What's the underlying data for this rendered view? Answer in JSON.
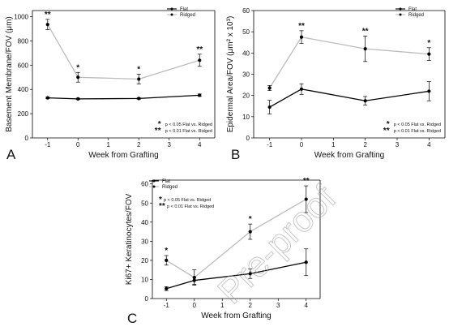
{
  "chart_data": [
    {
      "type": "line",
      "panel_label": "A",
      "xlabel": "Week from Grafting",
      "ylabel": "Basement Membrane/FOV (μm)",
      "xlim": [
        -1.5,
        4.5
      ],
      "ylim": [
        0,
        1050
      ],
      "x_ticks": [
        "-1",
        "0",
        "1",
        "2",
        "3",
        "4"
      ],
      "y_ticks": [
        "0",
        "200",
        "400",
        "600",
        "800",
        "1000"
      ],
      "grid": false,
      "legend_position": "top-right",
      "x": [
        -1,
        0,
        2,
        4
      ],
      "series": [
        {
          "name": "Flat",
          "values": [
            330,
            322,
            325,
            352
          ],
          "errors": [
            6,
            6,
            6,
            10
          ],
          "color": "#000000"
        },
        {
          "name": "Ridged",
          "values": [
            935,
            500,
            485,
            640
          ],
          "errors": [
            42,
            40,
            40,
            50
          ],
          "color": "#bbbbbb"
        }
      ],
      "significance": [
        "**",
        "*",
        "*",
        "**"
      ],
      "notes": [
        "p < 0.05 Flat vs. Ridged",
        "p < 0.01 Flat vs. Ridged"
      ]
    },
    {
      "type": "line",
      "panel_label": "B",
      "xlabel": "Week from Grafting",
      "ylabel": "Epidermal Area/FOV (μm² x 10³)",
      "xlim": [
        -1.5,
        4.5
      ],
      "ylim": [
        0,
        60
      ],
      "x_ticks": [
        "-1",
        "0",
        "1",
        "2",
        "3",
        "4"
      ],
      "y_ticks": [
        "0",
        "10",
        "20",
        "30",
        "40",
        "50",
        "60"
      ],
      "grid": false,
      "legend_position": "top-right",
      "x": [
        -1,
        0,
        2,
        4
      ],
      "series": [
        {
          "name": "Flat",
          "values": [
            14.5,
            23,
            17.5,
            22
          ],
          "errors": [
            3.2,
            2.5,
            2,
            4.5
          ],
          "color": "#000000"
        },
        {
          "name": "Ridged",
          "values": [
            23.5,
            47.5,
            42,
            39.5
          ],
          "errors": [
            1.2,
            3,
            6,
            3
          ],
          "color": "#bbbbbb"
        }
      ],
      "significance": [
        "",
        "**",
        "**",
        "*"
      ],
      "notes": [
        "p < 0.05 Flat vs. Ridged",
        "p < 0.01 Flat vs. Ridged"
      ]
    },
    {
      "type": "line",
      "panel_label": "C",
      "xlabel": "Week from Grafting",
      "ylabel": "Ki67+ Keratinocytes/FOV",
      "xlim": [
        -1.5,
        4.5
      ],
      "ylim": [
        0,
        62
      ],
      "x_ticks": [
        "-1",
        "0",
        "1",
        "2",
        "3",
        "4"
      ],
      "y_ticks": [
        "0",
        "10",
        "20",
        "30",
        "40",
        "50",
        "60"
      ],
      "grid": false,
      "legend_position": "top-left",
      "x": [
        -1,
        0,
        2,
        4
      ],
      "series": [
        {
          "name": "Flat",
          "values": [
            5.2,
            9.5,
            13,
            19
          ],
          "errors": [
            1,
            2,
            2.5,
            7
          ],
          "color": "#000000"
        },
        {
          "name": "Ridged",
          "values": [
            20,
            11,
            35,
            52
          ],
          "errors": [
            2.5,
            4,
            4,
            7
          ],
          "color": "#bbbbbb"
        }
      ],
      "significance": [
        "*",
        "",
        "*",
        "**"
      ],
      "notes": [
        "p < 0.05 Flat vs. Ridged",
        "p < 0.01 Flat vs. Ridged"
      ]
    }
  ],
  "watermark": "Pre-proof"
}
